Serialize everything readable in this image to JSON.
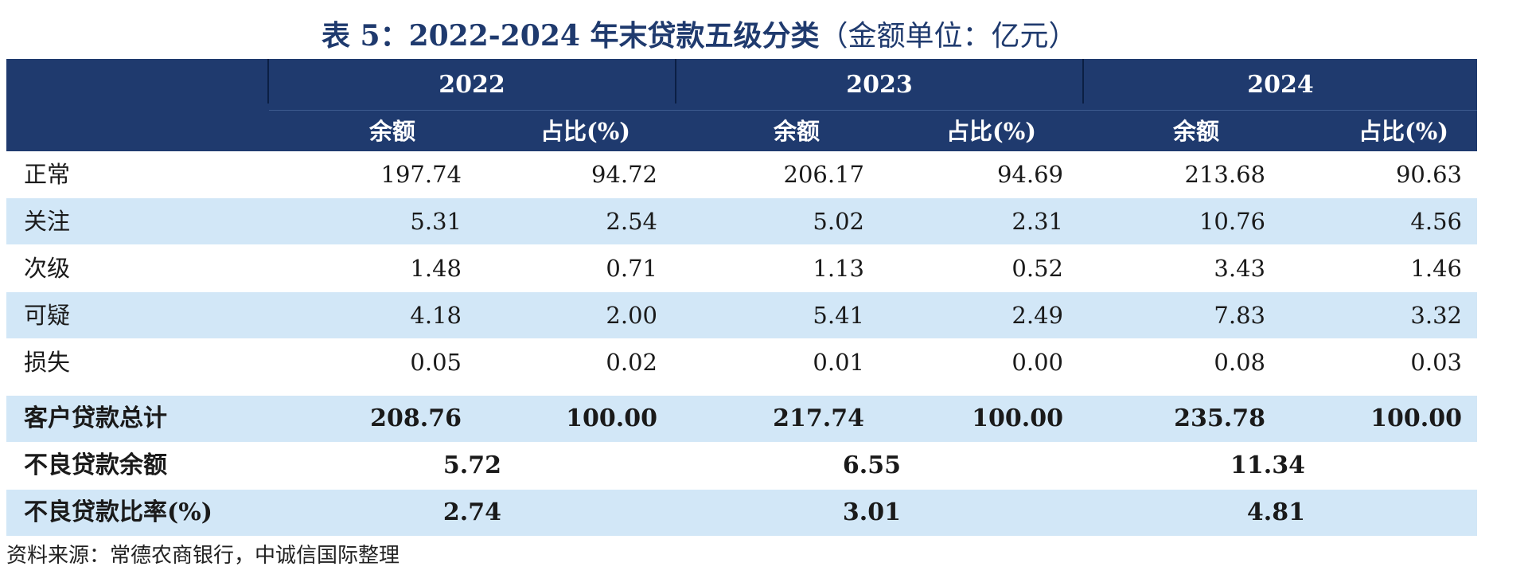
{
  "title": "表 5：2022-2024 年末贷款五级分类",
  "title_unit": "（金额单位：亿元）",
  "years": [
    "2022",
    "2023",
    "2024"
  ],
  "sub_headers": [
    "余额",
    "占比(%)",
    "余额",
    "占比(%)",
    "余额",
    "占比(%)"
  ],
  "rows": [
    {
      "label": "正常",
      "values": [
        "197.74",
        "94.72",
        "206.17",
        "94.69",
        "213.68",
        "90.63"
      ]
    },
    {
      "label": "关注",
      "values": [
        "5.31",
        "2.54",
        "5.02",
        "2.31",
        "10.76",
        "4.56"
      ]
    },
    {
      "label": "次级",
      "values": [
        "1.48",
        "0.71",
        "1.13",
        "0.52",
        "3.43",
        "1.46"
      ]
    },
    {
      "label": "可疑",
      "values": [
        "4.18",
        "2.00",
        "5.41",
        "2.49",
        "7.83",
        "3.32"
      ]
    },
    {
      "label": "损失",
      "values": [
        "0.05",
        "0.02",
        "0.01",
        "0.00",
        "0.08",
        "0.03"
      ]
    }
  ],
  "total_row": {
    "label": "客户贷款总计",
    "values": [
      "208.76",
      "100.00",
      "217.74",
      "100.00",
      "235.78",
      "100.00"
    ]
  },
  "npl_balance": {
    "label": "不良贷款余额",
    "values": [
      "5.72",
      "6.55",
      "11.34"
    ]
  },
  "npl_ratio": {
    "label": "不良贷款比率(%)",
    "values": [
      "2.74",
      "3.01",
      "4.81"
    ]
  },
  "source": "资料来源：常德农商银行，中诚信国际整理",
  "colors": {
    "header_bg": "#1f3a6e",
    "shade_bg": "#d2e7f7",
    "title": "#1f3a6e"
  }
}
